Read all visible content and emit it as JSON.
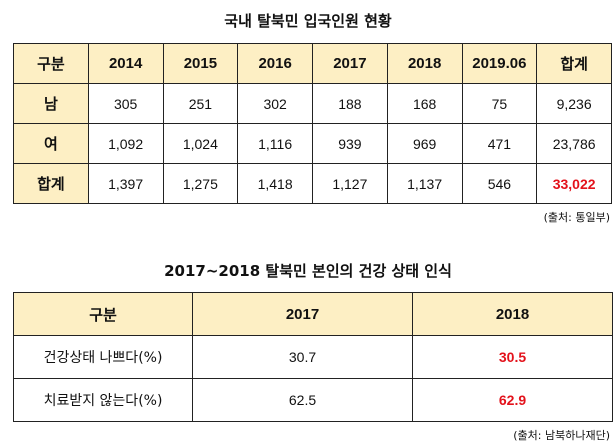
{
  "table1": {
    "title": "국내 탈북민 입국인원 현황",
    "headers": [
      "구분",
      "2014",
      "2015",
      "2016",
      "2017",
      "2018",
      "2019.06",
      "합계"
    ],
    "rows": [
      {
        "label": "남",
        "values": [
          "305",
          "251",
          "302",
          "188",
          "168",
          "75",
          "9,236"
        ]
      },
      {
        "label": "여",
        "values": [
          "1,092",
          "1,024",
          "1,116",
          "939",
          "969",
          "471",
          "23,786"
        ]
      },
      {
        "label": "합계",
        "values": [
          "1,397",
          "1,275",
          "1,418",
          "1,127",
          "1,137",
          "546",
          "33,022"
        ]
      }
    ],
    "source": "(출처: 통일부)"
  },
  "table2": {
    "title": "2017~2018 탈북민 본인의 건강 상태 인식",
    "headers": [
      "구분",
      "2017",
      "2018"
    ],
    "rows": [
      {
        "label": "건강상태 나쁘다(%)",
        "values": [
          "30.7",
          "30.5"
        ]
      },
      {
        "label": "치료받지 않는다(%)",
        "values": [
          "62.5",
          "62.9"
        ]
      }
    ],
    "source": "(출처: 남북하나재단)"
  },
  "colors": {
    "header_bg": "#fdefc4",
    "highlight": "#e3121b"
  }
}
